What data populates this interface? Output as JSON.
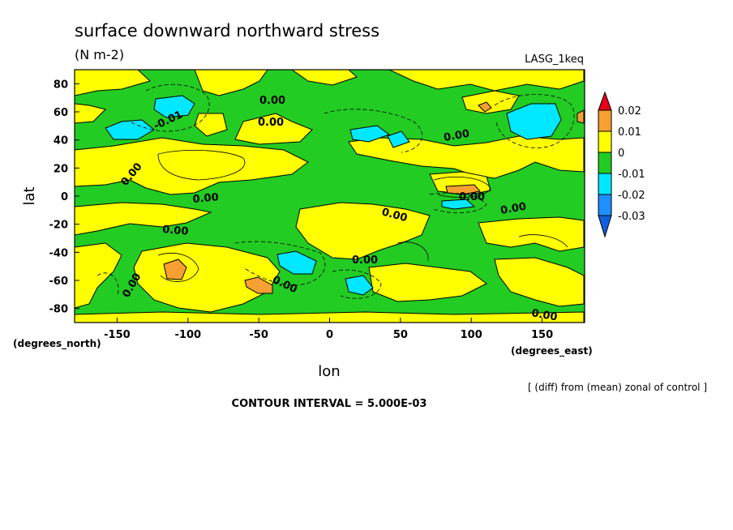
{
  "chart_data": {
    "type": "heatmap",
    "title": "surface downward northward stress",
    "units": "(N m-2)",
    "model_label": "LASG_1keq",
    "xlabel": "lon",
    "ylabel": "lat",
    "x_unit_note": "(degrees_east)",
    "y_unit_note": "(degrees_north)",
    "xlim": [
      -180,
      180
    ],
    "ylim": [
      -90,
      90
    ],
    "x_ticks": [
      -150,
      -100,
      -50,
      0,
      50,
      100,
      150
    ],
    "y_ticks": [
      80,
      60,
      40,
      20,
      0,
      -20,
      -40,
      -60,
      -80
    ],
    "colorbar": {
      "levels": [
        "0.02",
        "0.01",
        "0",
        "-0.01",
        "-0.02",
        "-0.03"
      ],
      "colors": [
        "#e8001a",
        "#f5a030",
        "#ffff00",
        "#22cc22",
        "#00e8ff",
        "#1e90ff",
        "#1060e0"
      ]
    },
    "contour_labels": [
      "0.00",
      "0.00",
      "-0.01",
      "0.00",
      "0.00",
      "0.00",
      "0.00",
      "0.00",
      "0.00",
      "0.00",
      "0.00",
      "0.00",
      "0.00",
      "0.00"
    ],
    "footnote": "[ (diff) from (mean) zonal of control ]",
    "contour_interval": "CONTOUR INTERVAL = 5.000E-03"
  }
}
